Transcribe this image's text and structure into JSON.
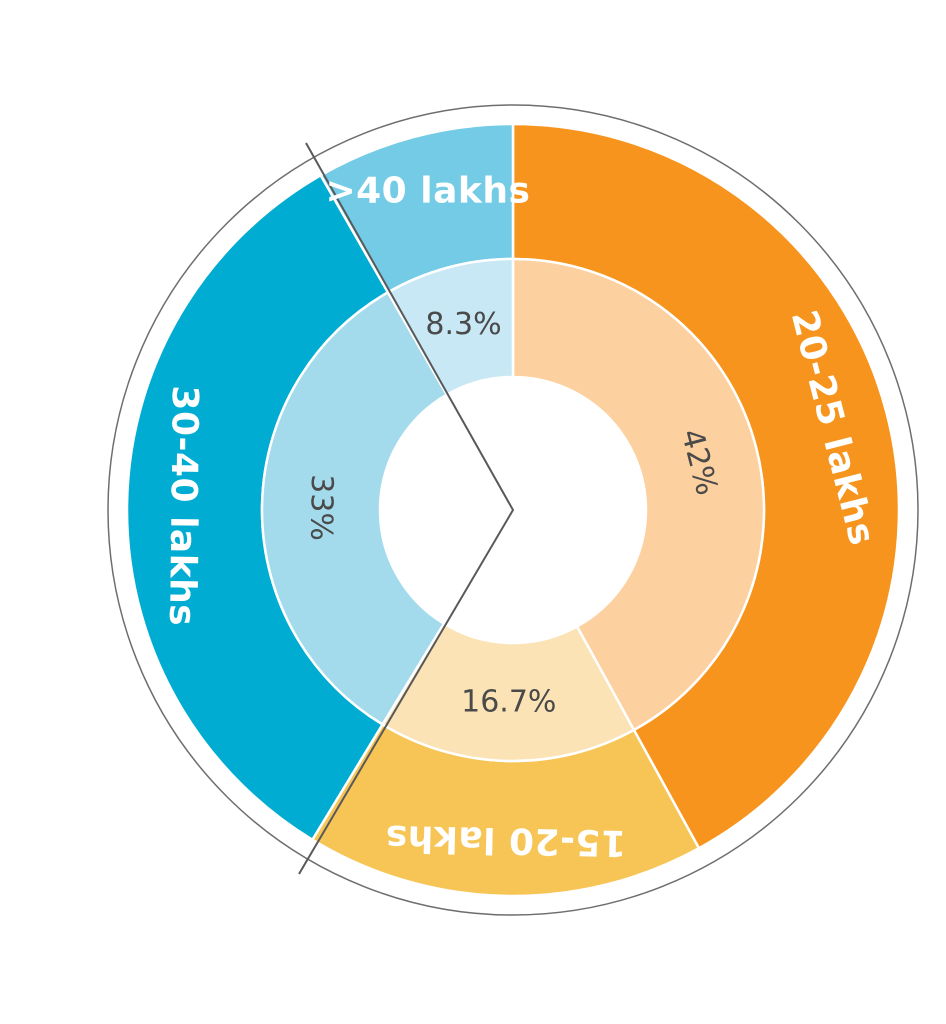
{
  "chart_data": {
    "type": "pie",
    "variant": "two-ring donut",
    "categories": [
      "20-25 lakhs",
      "15-20 lakhs",
      "30-40 lakhs",
      ">40 lakhs"
    ],
    "values": [
      42,
      16.7,
      33,
      8.3
    ],
    "value_labels": [
      "42%",
      "16.7%",
      "33%",
      "8.3%"
    ],
    "colors_outer": [
      "#f7941d",
      "#f6c555",
      "#00acd1",
      "#74cbe6"
    ],
    "colors_inner": [
      "#fcd09f",
      "#fbe3b6",
      "#a3dbed",
      "#c7e8f4"
    ],
    "title": "",
    "legend": "none"
  }
}
